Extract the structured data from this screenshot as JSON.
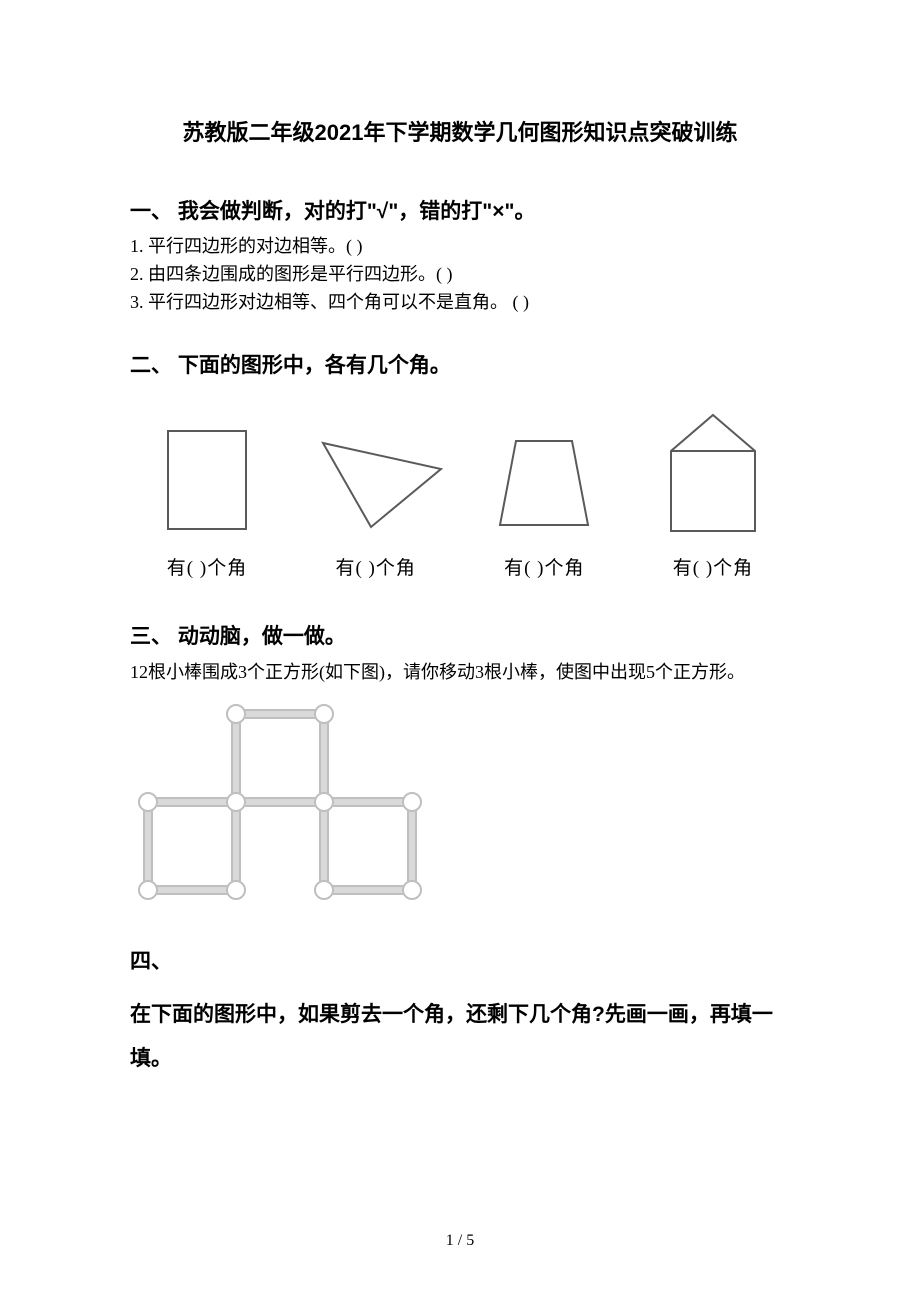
{
  "title": "苏教版二年级2021年下学期数学几何图形知识点突破训练",
  "section1": {
    "heading": "一、 我会做判断，对的打\"√\"，错的打\"×\"。",
    "items": [
      "1. 平行四边形的对边相等。(     )",
      "2. 由四条边围成的图形是平行四边形。(    )",
      "3. 平行四边形对边相等、四个角可以不是直角。 (     )"
    ]
  },
  "section2": {
    "heading": "二、 下面的图形中，各有几个角。",
    "caption": "有( )个角",
    "shapes": {
      "stroke": "#5a5a5a",
      "strokeWidth": 2
    }
  },
  "section3": {
    "heading": "三、 动动脑，做一做。",
    "desc": "12根小棒围成3个正方形(如下图)，请你移动3根小棒，使图中出现5个正方形。",
    "sticks": {
      "stickColor": "#bfbfbf",
      "stickInner": "#d9d9d9",
      "nodeFill": "#ffffff",
      "nodeStroke": "#bfbfbf",
      "cell": 88,
      "nodeR": 9,
      "stickW": 10
    }
  },
  "section4": {
    "heading": "四、",
    "body": "在下面的图形中，如果剪去一个角，还剩下几个角?先画一画，再填一填。"
  },
  "footer": "1 / 5"
}
